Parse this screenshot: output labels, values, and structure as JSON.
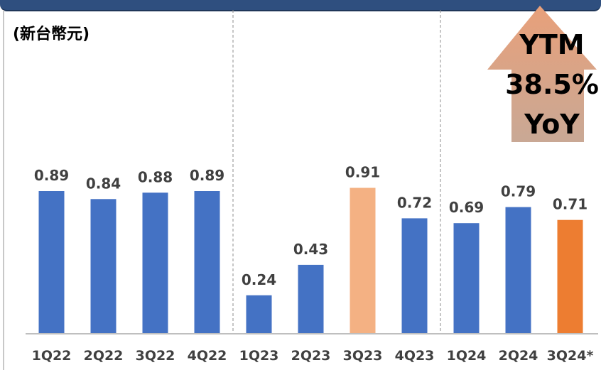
{
  "chart_data": {
    "type": "bar",
    "unit_label": "(新台幣元)",
    "categories": [
      "1Q22",
      "2Q22",
      "3Q22",
      "4Q22",
      "1Q23",
      "2Q23",
      "3Q23",
      "4Q23",
      "1Q24",
      "2Q24",
      "3Q24*"
    ],
    "values": [
      0.89,
      0.84,
      0.88,
      0.89,
      0.24,
      0.43,
      0.91,
      0.72,
      0.69,
      0.79,
      0.71
    ],
    "value_labels": [
      "0.89",
      "0.84",
      "0.88",
      "0.89",
      "0.24",
      "0.43",
      "0.91",
      "0.72",
      "0.69",
      "0.79",
      "0.71"
    ],
    "bar_colors": [
      "#4472c4",
      "#4472c4",
      "#4472c4",
      "#4472c4",
      "#4472c4",
      "#4472c4",
      "#f4b183",
      "#4472c4",
      "#4472c4",
      "#4472c4",
      "#ed7d31"
    ],
    "ylim": [
      0,
      1.0
    ],
    "grid": false,
    "group_separators_after": [
      "4Q22",
      "4Q23"
    ],
    "annotation": {
      "lines": [
        "YTM",
        "38.5%",
        "YoY"
      ],
      "shape": "up-arrow",
      "gradient_top": "#e8a07a",
      "gradient_bottom": "#c9a895"
    }
  }
}
